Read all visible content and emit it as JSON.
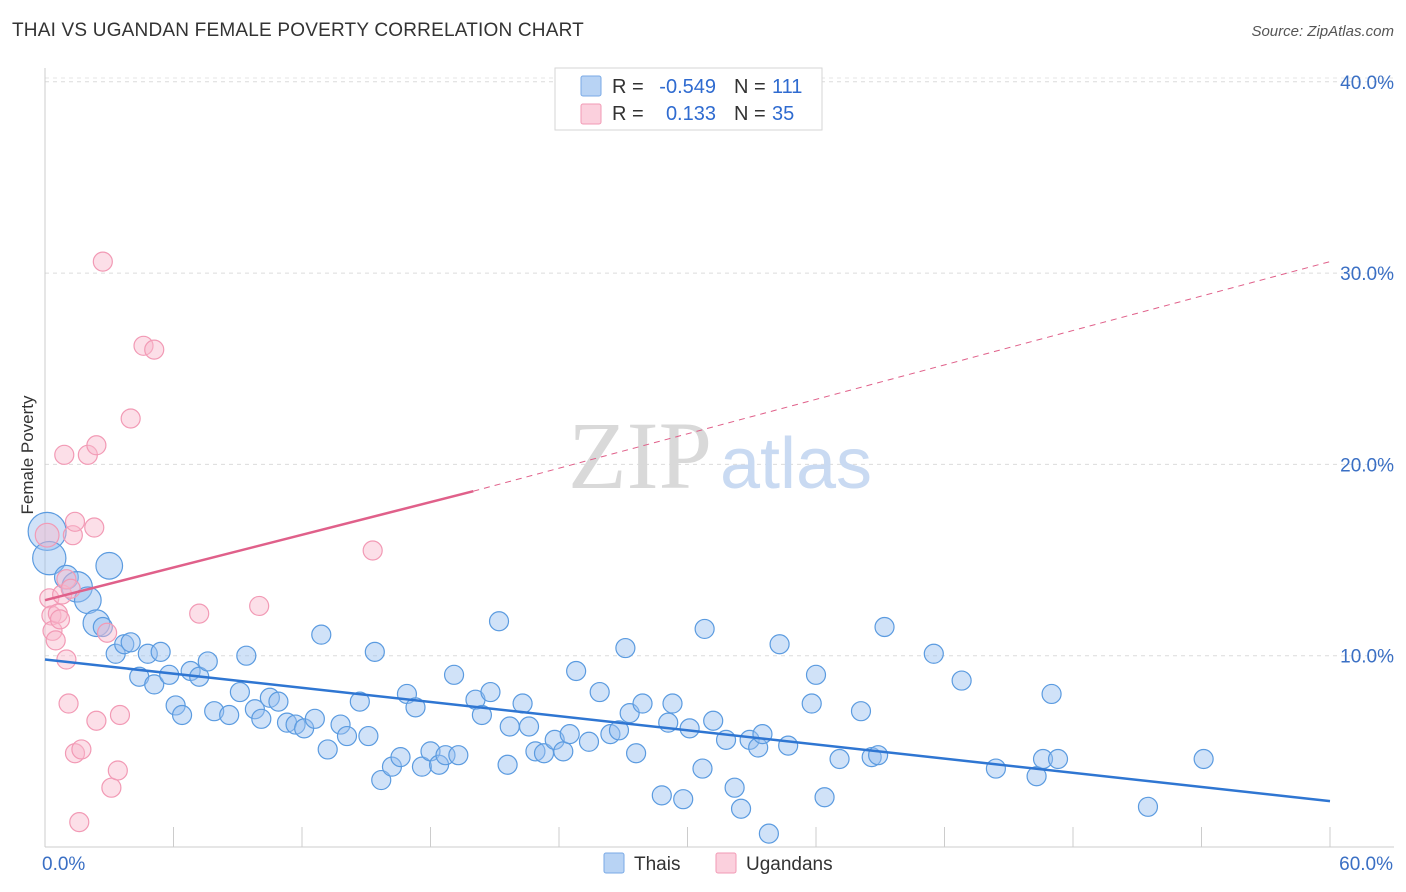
{
  "title": "THAI VS UGANDAN FEMALE POVERTY CORRELATION CHART",
  "source": "Source: ZipAtlas.com",
  "watermark": {
    "left": "ZIP",
    "right": "atlas"
  },
  "colors": {
    "thais": "#5b9be0",
    "ugandans": "#f29ab5",
    "thais_line": "#2f76d2",
    "ugandans_line": "#e0608a",
    "tick": "#3a6fc4"
  },
  "legend_top": [
    {
      "r_label": "R =",
      "r_value": "-0.549",
      "n_label": "N =",
      "n_value": "111"
    },
    {
      "r_label": "R =",
      "r_value": "0.133",
      "n_label": "N =",
      "n_value": "35"
    }
  ],
  "legend_bottom": [
    {
      "label": "Thais"
    },
    {
      "label": "Ugandans"
    }
  ],
  "chart_data": {
    "type": "scatter",
    "title": "THAI VS UGANDAN FEMALE POVERTY CORRELATION CHART",
    "xlabel": "",
    "ylabel": "Female Poverty",
    "xlim": [
      0,
      60
    ],
    "ylim": [
      0,
      42
    ],
    "x_tick_labels": [
      {
        "value": 0,
        "label": "0.0%"
      },
      {
        "value": 60,
        "label": "60.0%"
      }
    ],
    "y_tick_labels": [
      {
        "value": 10,
        "label": "10.0%"
      },
      {
        "value": 20,
        "label": "20.0%"
      },
      {
        "value": 30,
        "label": "30.0%"
      },
      {
        "value": 40,
        "label": "40.0%"
      }
    ],
    "grid": "horizontal dashed",
    "legend_position": "top-center",
    "series": [
      {
        "name": "Thais",
        "trend": {
          "x": [
            0,
            60
          ],
          "y": [
            9.8,
            2.4
          ]
        },
        "points": [
          [
            0.1,
            16.5,
            1.6
          ],
          [
            0.2,
            15.1,
            1.4
          ],
          [
            1.0,
            14.1,
            1.0
          ],
          [
            1.5,
            13.6,
            0.8
          ],
          [
            2.0,
            12.9,
            0.7
          ],
          [
            2.4,
            11.7,
            0.7
          ],
          [
            3.0,
            14.7,
            0.7
          ],
          [
            2.7,
            11.5,
            0.5
          ],
          [
            3.3,
            10.1,
            0.5
          ],
          [
            3.7,
            10.6,
            0.5
          ],
          [
            4.0,
            10.7,
            0.5
          ],
          [
            4.4,
            8.9,
            0.5
          ],
          [
            4.8,
            10.1,
            0.5
          ],
          [
            5.1,
            8.5,
            0.5
          ],
          [
            5.4,
            10.2,
            0.5
          ],
          [
            5.8,
            9.0,
            0.5
          ],
          [
            6.1,
            7.4,
            0.5
          ],
          [
            6.4,
            6.9,
            0.5
          ],
          [
            6.8,
            9.2,
            0.5
          ],
          [
            7.2,
            8.9,
            0.5
          ],
          [
            7.6,
            9.7,
            0.5
          ],
          [
            7.9,
            7.1,
            0.5
          ],
          [
            8.6,
            6.9,
            0.5
          ],
          [
            9.1,
            8.1,
            0.5
          ],
          [
            9.4,
            10.0,
            0.5
          ],
          [
            9.8,
            7.2,
            0.5
          ],
          [
            10.1,
            6.7,
            0.5
          ],
          [
            10.5,
            7.8,
            0.5
          ],
          [
            10.9,
            7.6,
            0.5
          ],
          [
            11.3,
            6.5,
            0.5
          ],
          [
            11.7,
            6.4,
            0.5
          ],
          [
            12.1,
            6.2,
            0.5
          ],
          [
            12.6,
            6.7,
            0.5
          ],
          [
            12.9,
            11.1,
            0.5
          ],
          [
            13.2,
            5.1,
            0.5
          ],
          [
            13.8,
            6.4,
            0.5
          ],
          [
            14.1,
            5.8,
            0.5
          ],
          [
            14.7,
            7.6,
            0.5
          ],
          [
            15.1,
            5.8,
            0.5
          ],
          [
            15.4,
            10.2,
            0.5
          ],
          [
            15.7,
            3.5,
            0.5
          ],
          [
            16.2,
            4.2,
            0.5
          ],
          [
            16.6,
            4.7,
            0.5
          ],
          [
            16.9,
            8.0,
            0.5
          ],
          [
            17.3,
            7.3,
            0.5
          ],
          [
            17.6,
            4.2,
            0.5
          ],
          [
            18.0,
            5.0,
            0.5
          ],
          [
            18.4,
            4.3,
            0.5
          ],
          [
            18.7,
            4.8,
            0.5
          ],
          [
            19.1,
            9.0,
            0.5
          ],
          [
            19.3,
            4.8,
            0.5
          ],
          [
            20.1,
            7.7,
            0.5
          ],
          [
            20.4,
            6.9,
            0.5
          ],
          [
            20.8,
            8.1,
            0.5
          ],
          [
            21.2,
            11.8,
            0.5
          ],
          [
            21.6,
            4.3,
            0.5
          ],
          [
            21.7,
            6.3,
            0.5
          ],
          [
            22.3,
            7.5,
            0.5
          ],
          [
            22.6,
            6.3,
            0.5
          ],
          [
            22.9,
            5.0,
            0.5
          ],
          [
            23.3,
            4.9,
            0.5
          ],
          [
            23.8,
            5.6,
            0.5
          ],
          [
            24.2,
            5.0,
            0.5
          ],
          [
            24.5,
            5.9,
            0.5
          ],
          [
            24.8,
            9.2,
            0.5
          ],
          [
            25.4,
            5.5,
            0.5
          ],
          [
            25.9,
            8.1,
            0.5
          ],
          [
            26.4,
            5.9,
            0.5
          ],
          [
            26.8,
            6.1,
            0.5
          ],
          [
            27.1,
            10.4,
            0.5
          ],
          [
            27.3,
            7.0,
            0.5
          ],
          [
            27.6,
            4.9,
            0.5
          ],
          [
            27.9,
            7.5,
            0.5
          ],
          [
            28.8,
            2.7,
            0.5
          ],
          [
            29.1,
            6.5,
            0.5
          ],
          [
            29.3,
            7.5,
            0.5
          ],
          [
            29.8,
            2.5,
            0.5
          ],
          [
            30.1,
            6.2,
            0.5
          ],
          [
            30.7,
            4.1,
            0.5
          ],
          [
            30.8,
            11.4,
            0.5
          ],
          [
            31.2,
            6.6,
            0.5
          ],
          [
            31.8,
            5.6,
            0.5
          ],
          [
            32.2,
            3.1,
            0.5
          ],
          [
            32.5,
            2.0,
            0.5
          ],
          [
            32.9,
            5.6,
            0.5
          ],
          [
            33.3,
            5.2,
            0.5
          ],
          [
            33.5,
            5.9,
            0.5
          ],
          [
            33.8,
            0.7,
            0.5
          ],
          [
            34.3,
            10.6,
            0.5
          ],
          [
            34.7,
            5.3,
            0.5
          ],
          [
            35.8,
            7.5,
            0.5
          ],
          [
            36.0,
            9.0,
            0.5
          ],
          [
            36.4,
            2.6,
            0.5
          ],
          [
            37.1,
            4.6,
            0.5
          ],
          [
            38.1,
            7.1,
            0.5
          ],
          [
            38.6,
            4.7,
            0.5
          ],
          [
            38.9,
            4.8,
            0.5
          ],
          [
            39.2,
            11.5,
            0.5
          ],
          [
            41.5,
            10.1,
            0.5
          ],
          [
            42.8,
            8.7,
            0.5
          ],
          [
            44.4,
            4.1,
            0.5
          ],
          [
            46.3,
            3.7,
            0.5
          ],
          [
            46.6,
            4.6,
            0.5
          ],
          [
            47.0,
            8.0,
            0.5
          ],
          [
            47.3,
            4.6,
            0.5
          ],
          [
            51.5,
            2.1,
            0.5
          ],
          [
            54.1,
            4.6,
            0.5
          ]
        ]
      },
      {
        "name": "Ugandans",
        "trend": {
          "x": [
            0,
            20
          ],
          "y": [
            12.9,
            18.6
          ],
          "dashed_to": {
            "x": 60,
            "y": 30.6
          }
        },
        "points": [
          [
            0.1,
            16.3,
            1.0
          ],
          [
            0.2,
            13.0,
            0.5
          ],
          [
            0.3,
            12.1,
            0.5
          ],
          [
            0.35,
            11.3,
            0.5
          ],
          [
            0.5,
            10.8,
            0.5
          ],
          [
            0.6,
            12.2,
            0.5
          ],
          [
            0.7,
            11.9,
            0.5
          ],
          [
            0.8,
            13.2,
            0.5
          ],
          [
            1.0,
            9.8,
            0.5
          ],
          [
            1.0,
            14.0,
            0.5
          ],
          [
            0.9,
            20.5,
            0.5
          ],
          [
            1.1,
            7.5,
            0.5
          ],
          [
            1.2,
            13.5,
            0.5
          ],
          [
            1.3,
            16.3,
            0.5
          ],
          [
            1.4,
            17.0,
            0.5
          ],
          [
            1.4,
            4.9,
            0.5
          ],
          [
            1.6,
            1.3,
            0.5
          ],
          [
            1.7,
            5.1,
            0.5
          ],
          [
            2.0,
            20.5,
            0.5
          ],
          [
            2.3,
            16.7,
            0.5
          ],
          [
            2.4,
            21.0,
            0.5
          ],
          [
            2.4,
            6.6,
            0.5
          ],
          [
            2.7,
            30.6,
            0.5
          ],
          [
            2.9,
            11.2,
            0.5
          ],
          [
            3.1,
            3.1,
            0.5
          ],
          [
            3.4,
            4.0,
            0.5
          ],
          [
            3.5,
            6.9,
            0.5
          ],
          [
            4.0,
            22.4,
            0.5
          ],
          [
            4.6,
            26.2,
            0.5
          ],
          [
            5.1,
            26.0,
            0.5
          ],
          [
            7.2,
            12.2,
            0.5
          ],
          [
            10.0,
            12.6,
            0.5
          ],
          [
            15.3,
            15.5,
            0.5
          ]
        ]
      }
    ]
  }
}
